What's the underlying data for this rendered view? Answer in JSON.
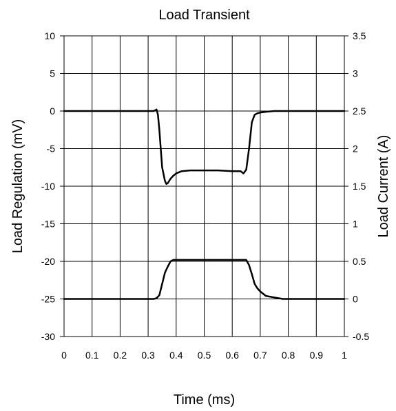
{
  "chart_data": {
    "type": "line",
    "title": "Load Transient",
    "xlabel": "Time (ms)",
    "ylabel": "Load Regulation (mV)",
    "y2label": "Load Current (A)",
    "xlim": [
      0,
      1
    ],
    "ylim": [
      -30,
      10
    ],
    "y2lim": [
      -0.5,
      3.5
    ],
    "grid": true,
    "x_ticks": [
      "0",
      "0.1",
      "0.2",
      "0.3",
      "0.4",
      "0.5",
      "0.6",
      "0.7",
      "0.8",
      "0.9",
      "1"
    ],
    "y_ticks": [
      "10",
      "5",
      "0",
      "-5",
      "-10",
      "-15",
      "-20",
      "-25",
      "-30"
    ],
    "y2_ticks": [
      "3.5",
      "3",
      "2.5",
      "2",
      "1.5",
      "1",
      "0.5",
      "0",
      "-0.5"
    ],
    "series": [
      {
        "axis": "left",
        "color": "#000000",
        "x": [
          0,
          0.32,
          0.33,
          0.335,
          0.34,
          0.35,
          0.36,
          0.365,
          0.37,
          0.38,
          0.39,
          0.4,
          0.42,
          0.45,
          0.5,
          0.55,
          0.6,
          0.63,
          0.64,
          0.65,
          0.66,
          0.67,
          0.68,
          0.69,
          0.7,
          0.72,
          0.75,
          0.8,
          1
        ],
        "y": [
          0,
          0,
          0.2,
          -0.5,
          -2.5,
          -7.5,
          -9.3,
          -9.7,
          -9.6,
          -9.0,
          -8.6,
          -8.3,
          -8.0,
          -7.9,
          -7.9,
          -7.9,
          -8.0,
          -8.0,
          -8.3,
          -7.8,
          -5.0,
          -1.5,
          -0.5,
          -0.3,
          -0.2,
          -0.1,
          0,
          0,
          0
        ]
      },
      {
        "axis": "right",
        "color": "#000000",
        "x": [
          0,
          0.32,
          0.33,
          0.34,
          0.35,
          0.36,
          0.37,
          0.38,
          0.39,
          0.4,
          0.5,
          0.6,
          0.65,
          0.66,
          0.67,
          0.68,
          0.69,
          0.7,
          0.72,
          0.75,
          0.78,
          0.8,
          1
        ],
        "y": [
          0,
          0,
          0.01,
          0.05,
          0.2,
          0.35,
          0.43,
          0.5,
          0.52,
          0.52,
          0.52,
          0.52,
          0.52,
          0.45,
          0.33,
          0.2,
          0.14,
          0.1,
          0.04,
          0.02,
          0,
          0,
          0
        ]
      }
    ]
  }
}
